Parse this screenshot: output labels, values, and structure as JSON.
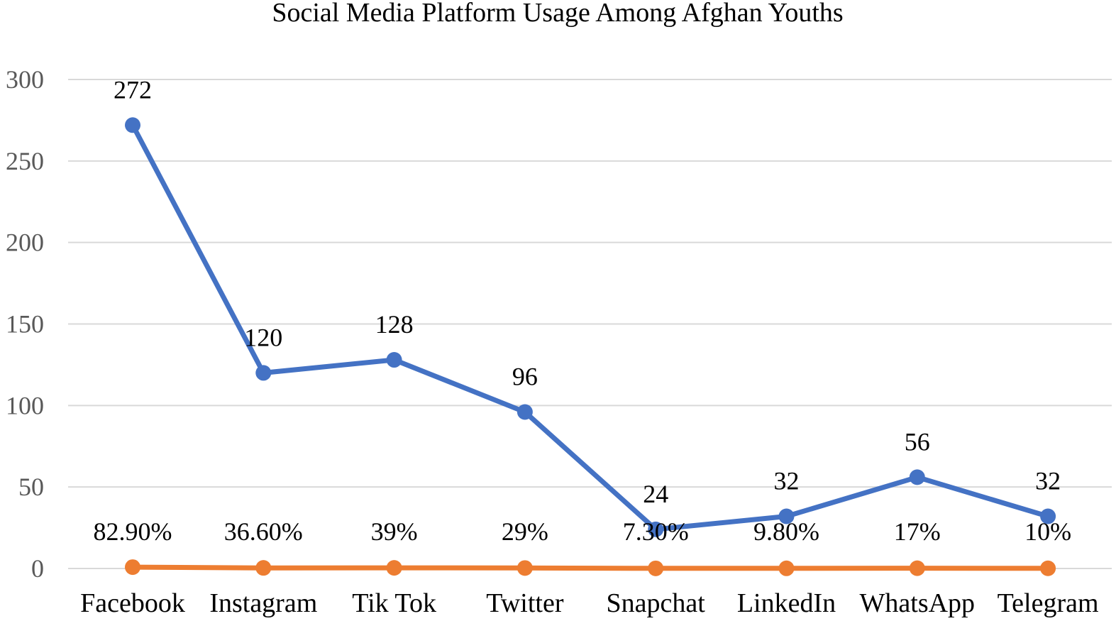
{
  "chart_data": {
    "type": "line",
    "title": "Social Media Platform Usage Among Afghan Youths",
    "categories": [
      "Facebook",
      "Instagram",
      "Tik Tok",
      "Twitter",
      "Snapchat",
      "LinkedIn",
      "WhatsApp",
      "Telegram"
    ],
    "series": [
      {
        "values": [
          272,
          120,
          128,
          96,
          24,
          32,
          56,
          32
        ],
        "labels": [
          "272",
          "120",
          "128",
          "96",
          "24",
          "32",
          "56",
          "32"
        ],
        "color": "#4472c4"
      },
      {
        "values": [
          0.829,
          0.366,
          0.39,
          0.29,
          0.073,
          0.098,
          0.17,
          0.1
        ],
        "labels": [
          "82.90%",
          "36.60%",
          "39%",
          "29%",
          "7.30%",
          "9.80%",
          "17%",
          "10%"
        ],
        "color": "#ed7d31"
      }
    ],
    "y_ticks": [
      "0",
      "50",
      "100",
      "150",
      "200",
      "250",
      "300"
    ],
    "ylim": [
      0,
      300
    ],
    "grid": true,
    "legend": "none",
    "xlabel": "",
    "ylabel": ""
  }
}
